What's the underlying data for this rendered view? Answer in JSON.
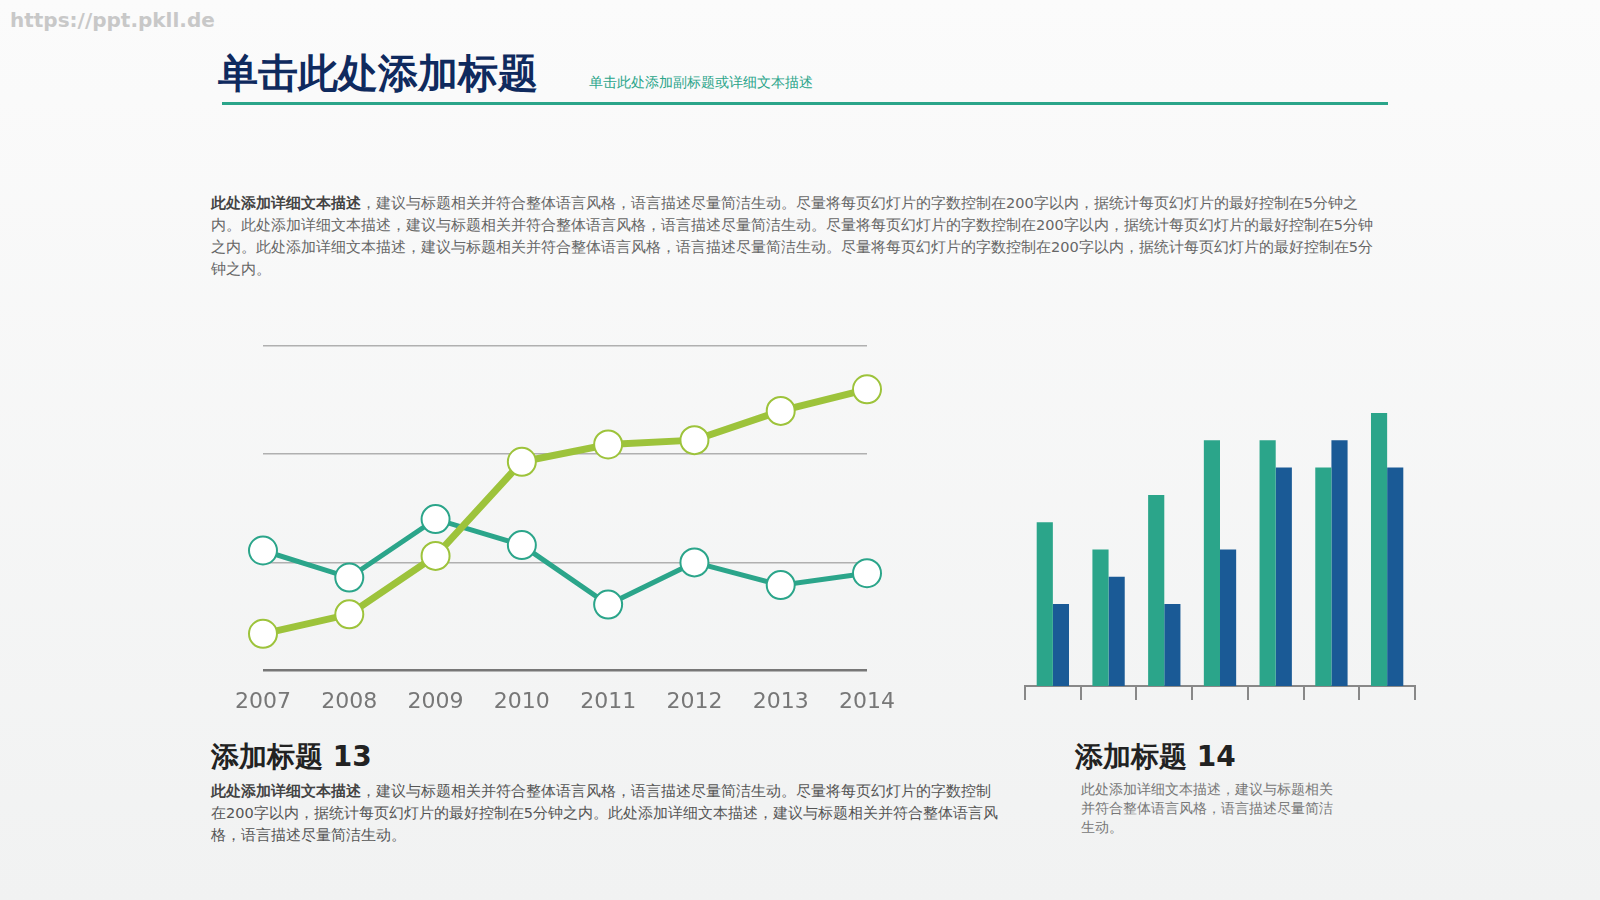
{
  "watermark": "https://ppt.pkll.de",
  "header": {
    "title": "单击此处添加标题",
    "subtitle": "单击此处添加副标题或详细文本描述"
  },
  "intro": {
    "lead": "此处添加详细文本描述",
    "text": "，建议与标题相关并符合整体语言风格，语言描述尽量简洁生动。尽量将每页幻灯片的字数控制在200字以内，据统计每页幻灯片的最好控制在5分钟之内。此处添加详细文本描述，建议与标题相关并符合整体语言风格，语言描述尽量简洁生动。尽量将每页幻灯片的字数控制在200字以内，据统计每页幻灯片的最好控制在5分钟之内。此处添加详细文本描述，建议与标题相关并符合整体语言风格，语言描述尽量简洁生动。尽量将每页幻灯片的字数控制在200字以内，据统计每页幻灯片的最好控制在5分钟之内。"
  },
  "panels": [
    {
      "title": "添加标题 13",
      "lead": "此处添加详细文本描述",
      "text": "，建议与标题相关并符合整体语言风格，语言描述尽量简洁生动。尽量将每页幻灯片的字数控制在200字以内，据统计每页幻灯片的最好控制在5分钟之内。此处添加详细文本描述，建议与标题相关并符合整体语言风格，语言描述尽量简洁生动。"
    },
    {
      "title": "添加标题 14",
      "text": "此处添加详细文本描述，建议与标题相关并符合整体语言风格，语言描述尽量简洁生动。"
    }
  ],
  "chart_data": [
    {
      "type": "line",
      "categories": [
        "2007",
        "2008",
        "2009",
        "2010",
        "2011",
        "2012",
        "2013",
        "2014"
      ],
      "series": [
        {
          "color": "#9dc33b",
          "marker": "circle",
          "line_style": "solid",
          "values": [
            3.4,
            5.2,
            10.6,
            19.3,
            20.9,
            21.3,
            24.0,
            26.0
          ]
        },
        {
          "color": "#2ba58a",
          "marker": "circle",
          "line_style": "solid",
          "values": [
            11.1,
            8.6,
            14.0,
            11.6,
            6.1,
            10.0,
            7.9,
            9.0
          ]
        }
      ],
      "ylim": [
        0,
        30
      ],
      "yticks": [
        0,
        10,
        20,
        30
      ],
      "grid": true,
      "tick_labels": "x"
    },
    {
      "type": "bar",
      "categories": [
        null,
        null,
        null,
        null,
        null,
        null,
        null
      ],
      "series": [
        {
          "color": "#2ba58a",
          "values": [
            6,
            5,
            7,
            9,
            9,
            8,
            10
          ]
        },
        {
          "color": "#1a5a96",
          "values": [
            3,
            4,
            3,
            5,
            8,
            9,
            8
          ]
        }
      ],
      "ylim": [
        0,
        10
      ],
      "grid": false,
      "tick_labels": false
    }
  ]
}
